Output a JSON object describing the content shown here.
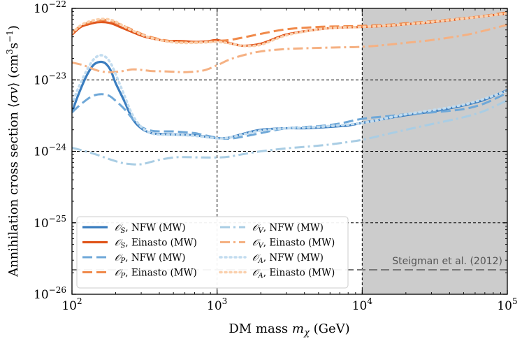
{
  "chart_data": {
    "type": "line",
    "xscale": "log",
    "yscale": "log",
    "xlabel": "DM mass m_χ (GeV)",
    "ylabel": "Annihilation cross section ⟨σv⟩ (cm³s⁻¹)",
    "xlim": [
      100,
      100000
    ],
    "ylim": [
      1e-26,
      1e-22
    ],
    "xticks": [
      {
        "value": 100,
        "label_base": "10",
        "label_exp": "2"
      },
      {
        "value": 1000,
        "label_base": "10",
        "label_exp": "3"
      },
      {
        "value": 10000,
        "label_base": "10",
        "label_exp": "4"
      },
      {
        "value": 100000,
        "label_base": "10",
        "label_exp": "5"
      }
    ],
    "yticks": [
      {
        "value": 1e-26,
        "label_base": "10",
        "label_exp": "−26"
      },
      {
        "value": 1e-25,
        "label_base": "10",
        "label_exp": "−25"
      },
      {
        "value": 1e-24,
        "label_base": "10",
        "label_exp": "−24"
      },
      {
        "value": 1e-23,
        "label_base": "10",
        "label_exp": "−23"
      },
      {
        "value": 1e-22,
        "label_base": "10",
        "label_exp": "−22"
      }
    ],
    "shaded_region": {
      "x_from": 10000,
      "x_to": 100000,
      "color": "#cccccc"
    },
    "reference_lines": {
      "vertical": [
        1000,
        10000
      ],
      "horizontal": [
        1e-23,
        1e-24,
        1e-25
      ]
    },
    "thermal_relic": {
      "label": "Steigman et al. (2012)",
      "x_from": 100,
      "x_to": 100000,
      "y": 2.2e-26,
      "color": "#777777"
    },
    "series": [
      {
        "name": "𝒪_S, NFW (MW)",
        "op": "𝒪",
        "sub": "S",
        "suffix": ", NFW (MW)",
        "color": "#3a7dbf",
        "dash": "solid",
        "width": 3.2,
        "x": [
          100,
          110,
          125,
          140,
          155,
          170,
          185,
          200,
          230,
          260,
          300,
          350,
          400,
          500,
          600,
          700,
          800,
          900,
          1000,
          1200,
          1500,
          2000,
          3000,
          4000,
          5000,
          6000,
          7000,
          8000,
          10000,
          15000,
          20000,
          30000,
          40000,
          50000,
          70000,
          100000
        ],
        "y": [
          3.5e-24,
          6e-24,
          1.1e-23,
          1.6e-23,
          1.78e-23,
          1.7e-23,
          1.35e-23,
          9e-24,
          5e-24,
          2.9e-24,
          2.1e-24,
          1.8e-24,
          1.75e-24,
          1.72e-24,
          1.7e-24,
          1.68e-24,
          1.62e-24,
          1.57e-24,
          1.53e-24,
          1.55e-24,
          1.75e-24,
          2e-24,
          2.1e-24,
          2.1e-24,
          2.15e-24,
          2.2e-24,
          2.25e-24,
          2.3e-24,
          2.5e-24,
          2.9e-24,
          3.2e-24,
          3.6e-24,
          4e-24,
          4.4e-24,
          5.3e-24,
          7.2e-24
        ]
      },
      {
        "name": "𝒪_S, Einasto (MW)",
        "op": "𝒪",
        "sub": "S",
        "suffix": ", Einasto (MW)",
        "color": "#e0561c",
        "dash": "solid",
        "width": 3.2,
        "x": [
          100,
          115,
          130,
          150,
          170,
          190,
          210,
          240,
          280,
          320,
          380,
          450,
          550,
          700,
          850,
          1000,
          1200,
          1500,
          2000,
          3000,
          5000,
          7000,
          10000,
          15000,
          20000,
          30000,
          50000,
          70000,
          100000
        ],
        "y": [
          4.3e-23,
          5.5e-23,
          6e-23,
          6.4e-23,
          6.4e-23,
          6.1e-23,
          5.6e-23,
          5e-23,
          4.4e-23,
          4e-23,
          3.7e-23,
          3.5e-23,
          3.5e-23,
          3.4e-23,
          3.45e-23,
          3.6e-23,
          3.3e-23,
          3e-23,
          3.2e-23,
          4.3e-23,
          5.1e-23,
          5.4e-23,
          5.5e-23,
          5.7e-23,
          6e-23,
          6.4e-23,
          7.2e-23,
          7.8e-23,
          8.5e-23
        ]
      },
      {
        "name": "𝒪_P, NFW (MW)",
        "op": "𝒪",
        "sub": "P",
        "suffix": ", NFW (MW)",
        "color": "#6fa8d8",
        "dash": "14,6",
        "width": 3,
        "x": [
          100,
          110,
          125,
          140,
          160,
          180,
          200,
          230,
          260,
          300,
          350,
          400,
          500,
          600,
          700,
          800,
          1000,
          1200,
          1500,
          2000,
          3000,
          5000,
          7000,
          10000,
          15000,
          20000,
          30000,
          50000,
          70000,
          100000
        ],
        "y": [
          3.5e-24,
          4.2e-24,
          5.2e-24,
          6e-24,
          6.3e-24,
          6e-24,
          5.1e-24,
          3.9e-24,
          2.9e-24,
          2.2e-24,
          1.95e-24,
          1.9e-24,
          1.9e-24,
          1.85e-24,
          1.8e-24,
          1.7e-24,
          1.55e-24,
          1.5e-24,
          1.6e-24,
          1.8e-24,
          2.1e-24,
          2.25e-24,
          2.45e-24,
          2.85e-24,
          3.1e-24,
          3.3e-24,
          3.5e-24,
          3.9e-24,
          4.7e-24,
          6.6e-24
        ]
      },
      {
        "name": "𝒪_P, Einasto (MW)",
        "op": "𝒪",
        "sub": "P",
        "suffix": ", Einasto (MW)",
        "color": "#f08a4b",
        "dash": "14,6",
        "width": 3,
        "x": [
          100,
          115,
          130,
          150,
          170,
          190,
          210,
          240,
          280,
          320,
          380,
          450,
          550,
          700,
          850,
          1000,
          1200,
          1500,
          2000,
          3000,
          5000,
          7000,
          10000,
          15000,
          20000,
          30000,
          50000,
          70000,
          100000
        ],
        "y": [
          4.6e-23,
          5.7e-23,
          6.3e-23,
          6.7e-23,
          6.9e-23,
          6.6e-23,
          6.1e-23,
          5.4e-23,
          4.7e-23,
          4.2e-23,
          3.8e-23,
          3.55e-23,
          3.4e-23,
          3.35e-23,
          3.4e-23,
          3.5e-23,
          3.6e-23,
          3.9e-23,
          4.4e-23,
          5.1e-23,
          5.5e-23,
          5.6e-23,
          5.7e-23,
          5.9e-23,
          6.2e-23,
          6.6e-23,
          7.3e-23,
          7.9e-23,
          8.8e-23
        ]
      },
      {
        "name": "𝒪_V, NFW (MW)",
        "op": "𝒪",
        "sub": "V",
        "suffix": ", NFW (MW)",
        "color": "#a9cde4",
        "dash": "14,5,3,5",
        "width": 3,
        "x": [
          100,
          120,
          150,
          180,
          220,
          260,
          300,
          350,
          400,
          500,
          600,
          800,
          1000,
          1200,
          1500,
          2000,
          3000,
          5000,
          7000,
          10000,
          15000,
          20000,
          30000,
          50000,
          70000,
          100000
        ],
        "y": [
          1.12e-24,
          1.02e-24,
          8.9e-25,
          7.8e-25,
          6.9e-25,
          6.6e-25,
          6.6e-25,
          7.1e-25,
          7.6e-25,
          8.2e-25,
          8.3e-25,
          8.2e-25,
          8.2e-25,
          8.4e-25,
          9.1e-25,
          1e-24,
          1.1e-24,
          1.2e-24,
          1.3e-24,
          1.45e-24,
          1.75e-24,
          2e-24,
          2.4e-24,
          3e-24,
          3.7e-24,
          5.2e-24
        ]
      },
      {
        "name": "𝒪_V, Einasto (MW)",
        "op": "𝒪",
        "sub": "V",
        "suffix": ", Einasto (MW)",
        "color": "#f5b183",
        "dash": "14,5,3,5",
        "width": 3,
        "x": [
          100,
          120,
          150,
          180,
          220,
          260,
          300,
          350,
          400,
          500,
          600,
          800,
          1000,
          1200,
          1500,
          2000,
          3000,
          5000,
          7000,
          10000,
          15000,
          20000,
          30000,
          50000,
          70000,
          100000
        ],
        "y": [
          1.75e-23,
          1.6e-23,
          1.35e-23,
          1.28e-23,
          1.32e-23,
          1.4e-23,
          1.38e-23,
          1.33e-23,
          1.32e-23,
          1.3e-23,
          1.28e-23,
          1.35e-23,
          1.6e-23,
          1.9e-23,
          2.2e-23,
          2.5e-23,
          2.7e-23,
          2.8e-23,
          2.85e-23,
          2.9e-23,
          3.1e-23,
          3.3e-23,
          3.6e-23,
          4.2e-23,
          4.9e-23,
          5.9e-23
        ]
      },
      {
        "name": "𝒪_A, NFW (MW)",
        "op": "𝒪",
        "sub": "A",
        "suffix": ", NFW (MW)",
        "color": "#c2dcef",
        "dash": "2,5",
        "width": 3.6,
        "x": [
          100,
          110,
          125,
          140,
          155,
          170,
          185,
          200,
          230,
          260,
          300,
          350,
          400,
          500,
          600,
          700,
          800,
          1000,
          1200,
          1500,
          2000,
          3000,
          5000,
          10000,
          20000,
          50000,
          100000
        ],
        "y": [
          4.5e-24,
          7.5e-24,
          1.3e-23,
          1.9e-23,
          2.2e-23,
          2.1e-23,
          1.7e-23,
          1.2e-23,
          6e-24,
          3.3e-24,
          2.2e-24,
          1.8e-24,
          1.72e-24,
          1.7e-24,
          1.68e-24,
          1.65e-24,
          1.6e-24,
          1.52e-24,
          1.55e-24,
          1.72e-24,
          1.95e-24,
          2.1e-24,
          2.2e-24,
          2.5e-24,
          3.3e-24,
          4.5e-24,
          7e-24
        ]
      },
      {
        "name": "𝒪_A, Einasto (MW)",
        "op": "𝒪",
        "sub": "A",
        "suffix": ", Einasto (MW)",
        "color": "#fad0ad",
        "dash": "2,5",
        "width": 3.6,
        "x": [
          100,
          115,
          130,
          150,
          170,
          190,
          210,
          240,
          280,
          320,
          380,
          450,
          550,
          700,
          850,
          1000,
          1200,
          1500,
          2000,
          3000,
          5000,
          7000,
          10000,
          20000,
          50000,
          100000
        ],
        "y": [
          4.5e-23,
          5.8e-23,
          6.5e-23,
          7e-23,
          7.1e-23,
          6.8e-23,
          6.2e-23,
          5.3e-23,
          4.6e-23,
          4.1e-23,
          3.7e-23,
          3.45e-23,
          3.3e-23,
          3.3e-23,
          3.35e-23,
          3.4e-23,
          3.25e-23,
          3e-23,
          3.1e-23,
          4.2e-23,
          5.1e-23,
          5.4e-23,
          5.5e-23,
          6e-23,
          7.2e-23,
          8.5e-23
        ]
      }
    ]
  }
}
